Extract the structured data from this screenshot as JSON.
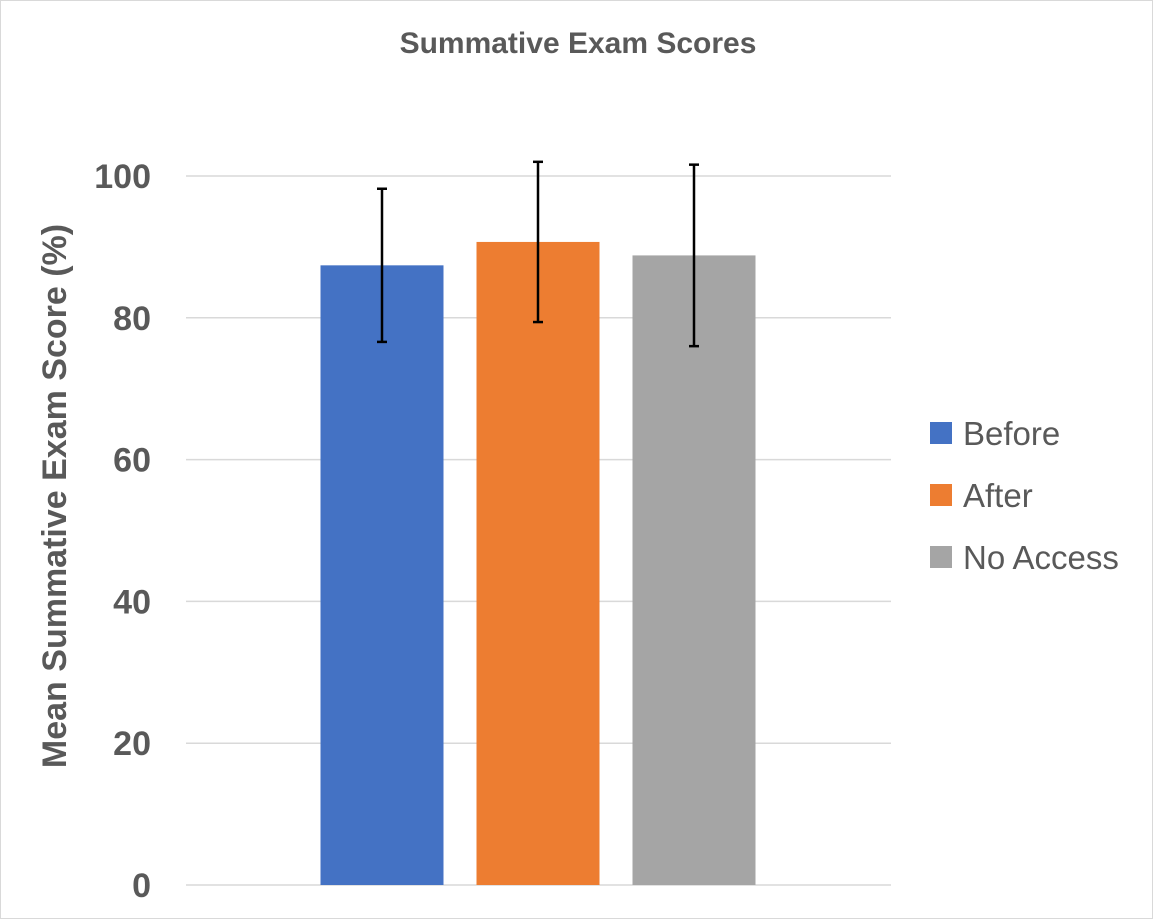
{
  "chart_data": {
    "type": "bar",
    "title": "Summative Exam Scores",
    "xlabel": "",
    "ylabel": "Mean Summative Exam Score (%)",
    "ylim": [
      0,
      100
    ],
    "yticks": [
      0,
      20,
      40,
      60,
      80,
      100
    ],
    "grid": true,
    "legend_position": "right",
    "series": [
      {
        "name": "Before",
        "value": 87.4,
        "error": 10.8,
        "color": "#4472C4"
      },
      {
        "name": "After",
        "value": 90.7,
        "error": 11.3,
        "color": "#ED7D31"
      },
      {
        "name": "No Access",
        "value": 88.8,
        "error": 12.8,
        "color": "#A5A5A5"
      }
    ]
  }
}
